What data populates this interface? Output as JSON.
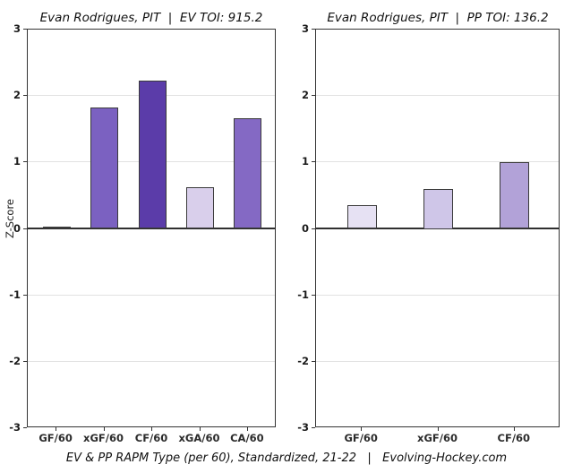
{
  "page": {
    "caption": "EV & PP RAPM Type (per 60), Standardized, 21-22   |   Evolving-Hockey.com"
  },
  "colors": {
    "background": "#ffffff",
    "plot_border": "#333333",
    "gridline": "#e2e2e2",
    "zero_line": "#2f2f2f",
    "bar_border": "#3a3a3a",
    "text": "#1a1a1a"
  },
  "chart_data": [
    {
      "type": "bar",
      "title": "Evan Rodrigues, PIT  |  EV TOI: 915.2",
      "xlabel": "",
      "ylabel": "Z-Score",
      "ylim": [
        -3,
        3
      ],
      "yticks": [
        3,
        2,
        1,
        0,
        -1,
        -2,
        -3
      ],
      "grid": true,
      "legend": "none",
      "categories": [
        "GF/60",
        "xGF/60",
        "CF/60",
        "xGA/60",
        "CA/60"
      ],
      "values": [
        0.03,
        1.83,
        2.23,
        0.63,
        1.66
      ],
      "bar_colors": [
        "#fcfcfe",
        "#7b61c1",
        "#5b3ca9",
        "#d9cfeb",
        "#8469c4"
      ]
    },
    {
      "type": "bar",
      "title": "Evan Rodrigues, PIT  |  PP TOI: 136.2",
      "xlabel": "",
      "ylabel": "",
      "ylim": [
        -3,
        3
      ],
      "yticks": [
        3,
        2,
        1,
        0,
        -1,
        -2,
        -3
      ],
      "grid": true,
      "legend": "none",
      "categories": [
        "GF/60",
        "xGF/60",
        "CF/60"
      ],
      "values": [
        0.36,
        0.6,
        1.01
      ],
      "bar_colors": [
        "#e6e1f3",
        "#cfc6e8",
        "#b2a2d8"
      ]
    }
  ]
}
